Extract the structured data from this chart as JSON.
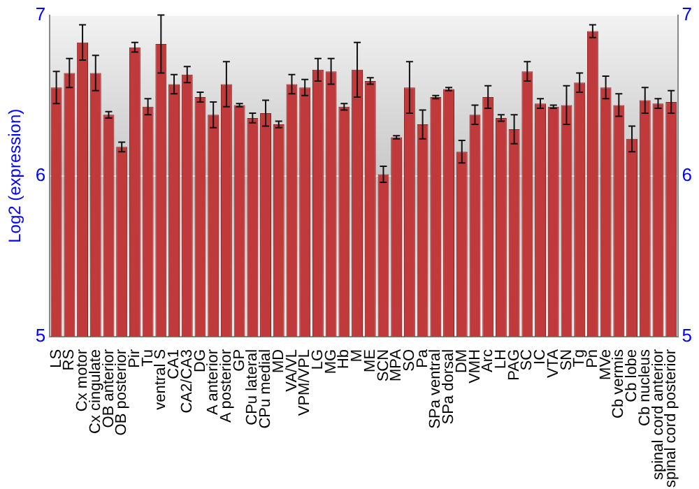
{
  "chart_data": {
    "type": "bar",
    "ylabel": "Log2 (expression)",
    "categories": [
      "LS",
      "RS",
      "Cx motor",
      "Cx cingulate",
      "OB anterior",
      "OB posterior",
      "Pir",
      "Tu",
      "ventral S",
      "CA1",
      "CA2/CA3",
      "DG",
      "A anterior",
      "A posterior",
      "GP",
      "CPu lateral",
      "CPu medial",
      "MD",
      "VA/VL",
      "VPM/VPL",
      "LG",
      "MG",
      "Hb",
      "M",
      "ME",
      "SCN",
      "MPA",
      "SO",
      "Pa",
      "SPa ventral",
      "SPa dorsal",
      "DM",
      "VMH",
      "Arc",
      "LH",
      "PAG",
      "SC",
      "IC",
      "VTA",
      "SN",
      "Tg",
      "Pn",
      "MVe",
      "Cb vermis",
      "Cb lobe",
      "Cb nucleus",
      "spinal cord anterior",
      "spinal cord posterior"
    ],
    "values": [
      6.55,
      6.64,
      6.83,
      6.64,
      6.38,
      6.18,
      6.8,
      6.43,
      6.82,
      6.57,
      6.63,
      6.49,
      6.38,
      6.57,
      6.44,
      6.36,
      6.39,
      6.32,
      6.57,
      6.55,
      6.66,
      6.65,
      6.43,
      6.66,
      6.59,
      6.01,
      6.24,
      6.55,
      6.32,
      6.49,
      6.54,
      6.15,
      6.38,
      6.49,
      6.36,
      6.29,
      6.65,
      6.45,
      6.43,
      6.44,
      6.58,
      6.9,
      6.55,
      6.44,
      6.23,
      6.47,
      6.45,
      6.46
    ],
    "errors": [
      0.1,
      0.09,
      0.11,
      0.11,
      0.02,
      0.03,
      0.03,
      0.05,
      0.18,
      0.06,
      0.05,
      0.03,
      0.08,
      0.14,
      0.01,
      0.03,
      0.08,
      0.02,
      0.06,
      0.05,
      0.07,
      0.08,
      0.02,
      0.17,
      0.02,
      0.05,
      0.01,
      0.16,
      0.09,
      0.01,
      0.01,
      0.07,
      0.06,
      0.07,
      0.02,
      0.09,
      0.06,
      0.03,
      0.01,
      0.12,
      0.06,
      0.04,
      0.07,
      0.07,
      0.08,
      0.08,
      0.03,
      0.07
    ],
    "color": "#c0393b",
    "ylim": [
      5,
      7
    ],
    "yticks": [
      5,
      6,
      7
    ],
    "y2lim": [
      5,
      7
    ],
    "y2ticks": [
      5,
      6,
      7
    ],
    "grid": "y",
    "legend": false
  }
}
